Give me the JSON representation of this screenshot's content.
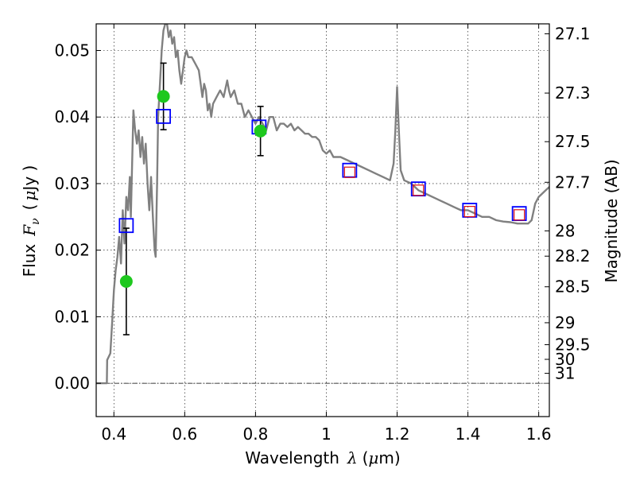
{
  "chart_data": {
    "type": "line",
    "xlabel": {
      "text": "Wavelength",
      "symbol": "λ",
      "unit_open": "(",
      "unit_mu": "μ",
      "unit_rest": "m)"
    },
    "ylabel": {
      "text": "Flux",
      "symbol": "F",
      "subscript": "ν",
      "unit_open": "(",
      "unit_mu": "μ",
      "unit_rest": "Jy )"
    },
    "y2label": "Magnitude (AB)",
    "xlim": [
      0.35,
      1.63
    ],
    "ylim": [
      -0.005,
      0.054
    ],
    "grid": true,
    "zero_line": true,
    "x_ticks": [
      0.4,
      0.6,
      0.8,
      1.0,
      1.2,
      1.4,
      1.6
    ],
    "x_tick_labels": [
      "0.4",
      "0.6",
      "0.8",
      "1",
      "1.2",
      "1.4",
      "1.6"
    ],
    "y_ticks": [
      0.0,
      0.01,
      0.02,
      0.03,
      0.04,
      0.05
    ],
    "y_tick_labels": [
      "0.00",
      "0.01",
      "0.02",
      "0.03",
      "0.04",
      "0.05"
    ],
    "mag_ticks": [
      {
        "label": "27.1",
        "flux": 0.0525
      },
      {
        "label": "27.3",
        "flux": 0.0436
      },
      {
        "label": "27.5",
        "flux": 0.0363
      },
      {
        "label": "27.7",
        "flux": 0.0302
      },
      {
        "label": "28",
        "flux": 0.0229
      },
      {
        "label": "28.2",
        "flux": 0.0191
      },
      {
        "label": "28.5",
        "flux": 0.0145
      },
      {
        "label": "29",
        "flux": 0.0091
      },
      {
        "label": "29.5",
        "flux": 0.0058
      },
      {
        "label": "30",
        "flux": 0.0036
      },
      {
        "label": "31",
        "flux": 0.0015
      }
    ],
    "colors": {
      "model": "#808080",
      "observed": "#1ec81e",
      "model_photometry": "#0000ff",
      "predicted": "#dd1111"
    },
    "series": [
      {
        "type": "line",
        "points": [
          [
            0.35,
            0.0
          ],
          [
            0.38,
            0.0
          ],
          [
            0.381,
            0.0035
          ],
          [
            0.39,
            0.0045
          ],
          [
            0.395,
            0.009
          ],
          [
            0.4,
            0.014
          ],
          [
            0.405,
            0.017
          ],
          [
            0.41,
            0.019
          ],
          [
            0.415,
            0.022
          ],
          [
            0.42,
            0.018
          ],
          [
            0.425,
            0.026
          ],
          [
            0.43,
            0.021
          ],
          [
            0.435,
            0.028
          ],
          [
            0.44,
            0.026
          ],
          [
            0.445,
            0.031
          ],
          [
            0.448,
            0.025
          ],
          [
            0.452,
            0.034
          ],
          [
            0.455,
            0.041
          ],
          [
            0.46,
            0.038
          ],
          [
            0.465,
            0.036
          ],
          [
            0.47,
            0.038
          ],
          [
            0.475,
            0.034
          ],
          [
            0.48,
            0.037
          ],
          [
            0.485,
            0.033
          ],
          [
            0.49,
            0.036
          ],
          [
            0.495,
            0.03
          ],
          [
            0.5,
            0.026
          ],
          [
            0.505,
            0.031
          ],
          [
            0.51,
            0.025
          ],
          [
            0.515,
            0.02
          ],
          [
            0.518,
            0.019
          ],
          [
            0.522,
            0.03
          ],
          [
            0.525,
            0.04
          ],
          [
            0.53,
            0.045
          ],
          [
            0.535,
            0.05
          ],
          [
            0.54,
            0.053
          ],
          [
            0.545,
            0.054
          ],
          [
            0.55,
            0.054
          ],
          [
            0.555,
            0.052
          ],
          [
            0.56,
            0.053
          ],
          [
            0.565,
            0.051
          ],
          [
            0.57,
            0.052
          ],
          [
            0.575,
            0.049
          ],
          [
            0.58,
            0.05
          ],
          [
            0.585,
            0.047
          ],
          [
            0.59,
            0.045
          ],
          [
            0.595,
            0.047
          ],
          [
            0.6,
            0.049
          ],
          [
            0.605,
            0.05
          ],
          [
            0.61,
            0.049
          ],
          [
            0.62,
            0.049
          ],
          [
            0.63,
            0.048
          ],
          [
            0.64,
            0.047
          ],
          [
            0.645,
            0.045
          ],
          [
            0.65,
            0.043
          ],
          [
            0.655,
            0.045
          ],
          [
            0.66,
            0.044
          ],
          [
            0.665,
            0.041
          ],
          [
            0.67,
            0.042
          ],
          [
            0.675,
            0.04
          ],
          [
            0.68,
            0.042
          ],
          [
            0.69,
            0.043
          ],
          [
            0.7,
            0.044
          ],
          [
            0.71,
            0.043
          ],
          [
            0.72,
            0.0455
          ],
          [
            0.725,
            0.044
          ],
          [
            0.73,
            0.043
          ],
          [
            0.74,
            0.044
          ],
          [
            0.75,
            0.042
          ],
          [
            0.76,
            0.042
          ],
          [
            0.77,
            0.04
          ],
          [
            0.78,
            0.041
          ],
          [
            0.79,
            0.04
          ],
          [
            0.8,
            0.039
          ],
          [
            0.81,
            0.04
          ],
          [
            0.82,
            0.039
          ],
          [
            0.83,
            0.038
          ],
          [
            0.84,
            0.04
          ],
          [
            0.85,
            0.04
          ],
          [
            0.86,
            0.038
          ],
          [
            0.87,
            0.039
          ],
          [
            0.88,
            0.039
          ],
          [
            0.89,
            0.0385
          ],
          [
            0.9,
            0.039
          ],
          [
            0.91,
            0.038
          ],
          [
            0.92,
            0.0385
          ],
          [
            0.93,
            0.038
          ],
          [
            0.94,
            0.0375
          ],
          [
            0.95,
            0.0375
          ],
          [
            0.96,
            0.037
          ],
          [
            0.97,
            0.037
          ],
          [
            0.98,
            0.0365
          ],
          [
            0.99,
            0.035
          ],
          [
            1.0,
            0.0345
          ],
          [
            1.01,
            0.035
          ],
          [
            1.02,
            0.034
          ],
          [
            1.04,
            0.034
          ],
          [
            1.06,
            0.0335
          ],
          [
            1.08,
            0.033
          ],
          [
            1.1,
            0.0325
          ],
          [
            1.12,
            0.032
          ],
          [
            1.14,
            0.0315
          ],
          [
            1.16,
            0.031
          ],
          [
            1.18,
            0.0305
          ],
          [
            1.19,
            0.033
          ],
          [
            1.195,
            0.038
          ],
          [
            1.2,
            0.0445
          ],
          [
            1.205,
            0.038
          ],
          [
            1.21,
            0.032
          ],
          [
            1.22,
            0.0305
          ],
          [
            1.24,
            0.03
          ],
          [
            1.26,
            0.029
          ],
          [
            1.28,
            0.0285
          ],
          [
            1.3,
            0.028
          ],
          [
            1.32,
            0.0275
          ],
          [
            1.34,
            0.027
          ],
          [
            1.36,
            0.0265
          ],
          [
            1.38,
            0.026
          ],
          [
            1.4,
            0.026
          ],
          [
            1.42,
            0.0255
          ],
          [
            1.44,
            0.025
          ],
          [
            1.46,
            0.025
          ],
          [
            1.48,
            0.0245
          ],
          [
            1.5,
            0.0243
          ],
          [
            1.52,
            0.0242
          ],
          [
            1.54,
            0.024
          ],
          [
            1.56,
            0.024
          ],
          [
            1.57,
            0.024
          ],
          [
            1.58,
            0.0245
          ],
          [
            1.59,
            0.027
          ],
          [
            1.6,
            0.028
          ],
          [
            1.62,
            0.029
          ],
          [
            1.63,
            0.0295
          ]
        ]
      },
      {
        "type": "scatter_errorbar",
        "points": [
          {
            "x": 0.435,
            "y": 0.0153,
            "err": 0.008
          },
          {
            "x": 0.54,
            "y": 0.0431,
            "err": 0.005
          },
          {
            "x": 0.814,
            "y": 0.0379,
            "err": 0.0037
          }
        ]
      },
      {
        "type": "scatter",
        "marker": "square-open-blue",
        "points": [
          {
            "x": 0.435,
            "y": 0.0237
          },
          {
            "x": 0.54,
            "y": 0.0401
          },
          {
            "x": 0.81,
            "y": 0.0385
          },
          {
            "x": 1.066,
            "y": 0.032
          },
          {
            "x": 1.26,
            "y": 0.0292
          },
          {
            "x": 1.405,
            "y": 0.026
          },
          {
            "x": 1.545,
            "y": 0.0255
          }
        ]
      },
      {
        "type": "scatter",
        "marker": "square-open-red",
        "points": [
          {
            "x": 1.066,
            "y": 0.0317
          },
          {
            "x": 1.26,
            "y": 0.029
          },
          {
            "x": 1.405,
            "y": 0.0258
          },
          {
            "x": 1.545,
            "y": 0.0253
          }
        ]
      }
    ]
  }
}
